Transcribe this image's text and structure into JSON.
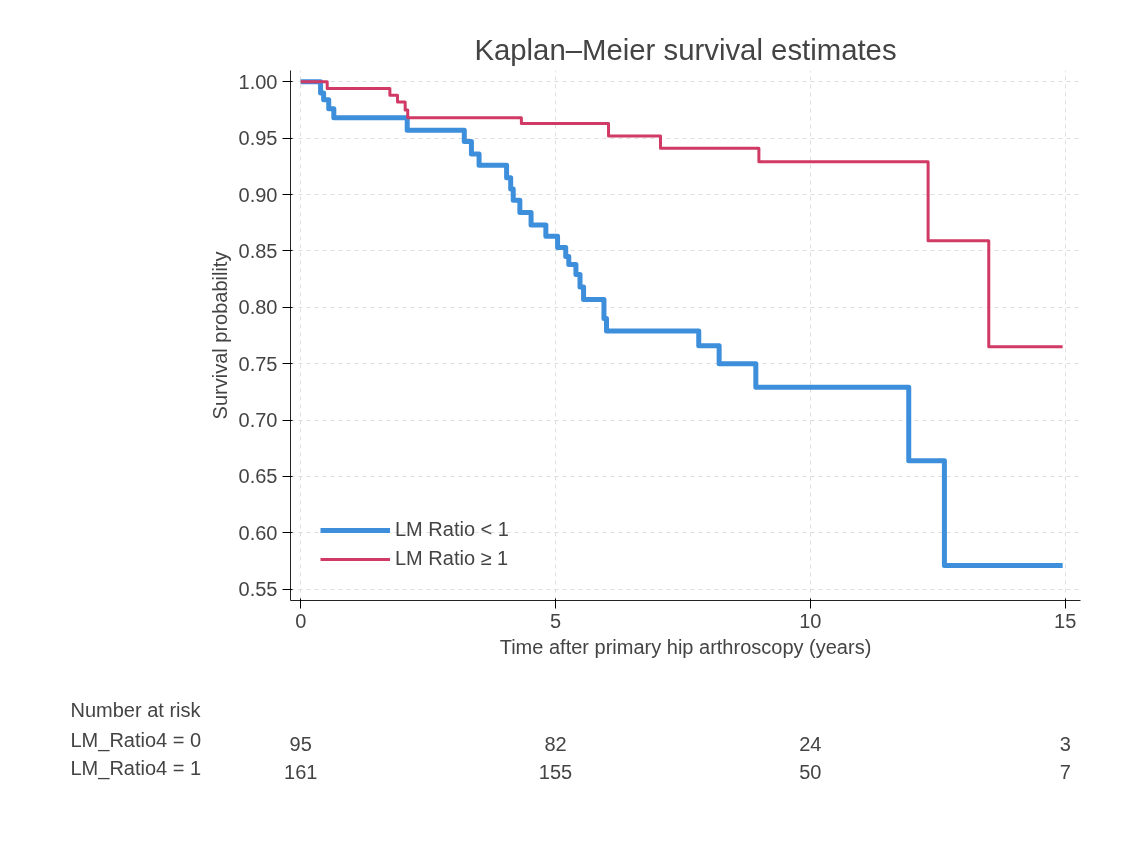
{
  "chart_data": {
    "type": "step",
    "title": "Kaplan–Meier survival estimates",
    "xlabel": "Time after primary hip arthroscopy (years)",
    "ylabel": "Survival probability",
    "series": [
      {
        "name": "LM Ratio < 1",
        "color": "#3d8fdc",
        "x": [
          0,
          0.39,
          0.45,
          0.55,
          0.65,
          2.09,
          3.21,
          3.35,
          3.5,
          4.04,
          4.12,
          4.17,
          4.3,
          4.52,
          4.81,
          5.04,
          5.2,
          5.26,
          5.4,
          5.48,
          5.55,
          5.95,
          6.0,
          7.81,
          8.21,
          8.93,
          11.93,
          12.63,
          14.95
        ],
        "values": [
          1.0,
          0.99,
          0.984,
          0.976,
          0.968,
          0.957,
          0.947,
          0.936,
          0.926,
          0.915,
          0.905,
          0.895,
          0.884,
          0.873,
          0.863,
          0.853,
          0.845,
          0.838,
          0.829,
          0.818,
          0.807,
          0.79,
          0.779,
          0.766,
          0.75,
          0.729,
          0.664,
          0.571,
          0.571
        ]
      },
      {
        "name": "LM Ratio ≥ 1",
        "color": "#d03a64",
        "x": [
          0,
          0.52,
          1.75,
          1.9,
          2.05,
          2.1,
          4.33,
          6.04,
          7.06,
          8.99,
          12.31,
          13.5,
          14.95
        ],
        "values": [
          1.0,
          0.994,
          0.988,
          0.982,
          0.975,
          0.968,
          0.963,
          0.952,
          0.941,
          0.929,
          0.859,
          0.765,
          0.765
        ]
      }
    ],
    "xlim": [
      -0.2,
      15.3
    ],
    "ylim": [
      0.54,
      1.01
    ],
    "xticks": [
      0,
      5,
      10,
      15
    ],
    "yticks": [
      {
        "value": 0.55,
        "label": "0.55"
      },
      {
        "value": 0.6,
        "label": "0.60"
      },
      {
        "value": 0.65,
        "label": "0.65"
      },
      {
        "value": 0.7,
        "label": "0.70"
      },
      {
        "value": 0.75,
        "label": "0.75"
      },
      {
        "value": 0.8,
        "label": "0.80"
      },
      {
        "value": 0.85,
        "label": "0.85"
      },
      {
        "value": 0.9,
        "label": "0.90"
      },
      {
        "value": 0.95,
        "label": "0.95"
      },
      {
        "value": 1.0,
        "label": "1.00"
      }
    ],
    "grid": true,
    "legend": "bottom left",
    "line_style": "solid",
    "annotations": [
      "Number at risk",
      "LM_Ratio4 = 0",
      "95",
      "82",
      "24",
      "3",
      "LM_Ratio4 = 1",
      "161",
      "155",
      "50",
      "7"
    ]
  }
}
